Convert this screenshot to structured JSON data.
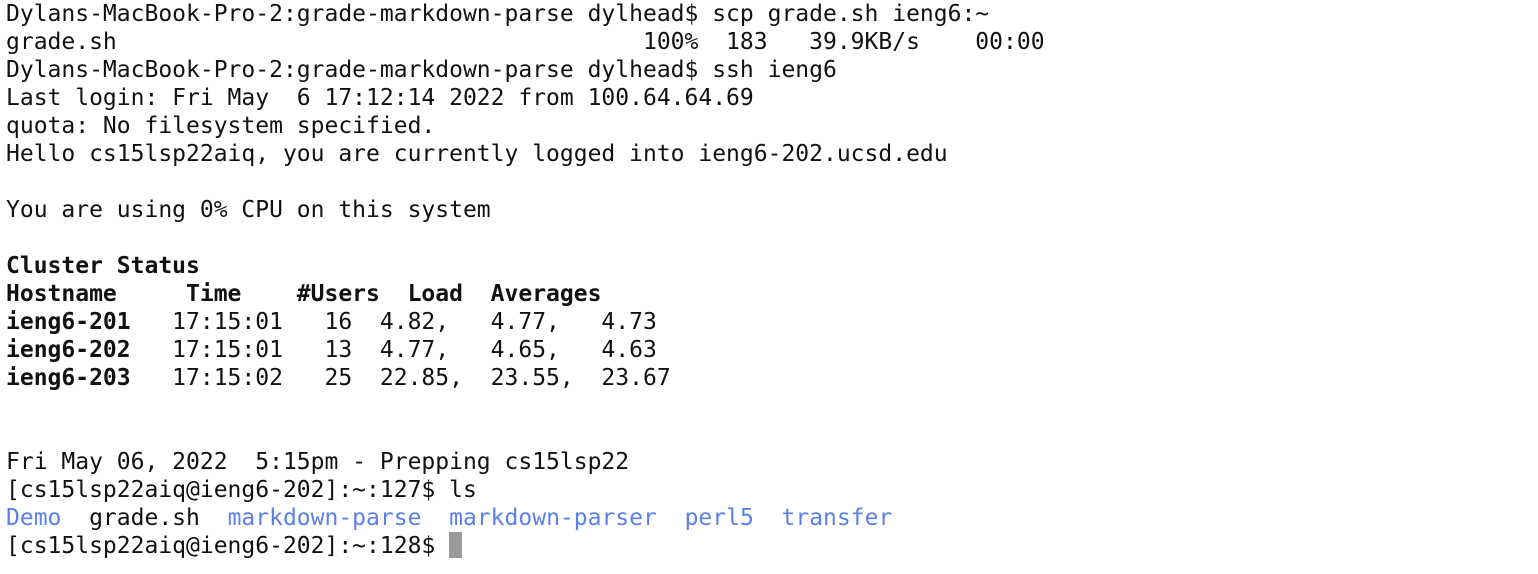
{
  "terminal": {
    "blocks": [
      {
        "lines": [
          [
            {
              "text": "Dylans-MacBook-Pro-2:grade-markdown-parse dylhead$ scp grade.sh ieng6:~"
            }
          ],
          [
            {
              "text": "grade.sh                                      100%  183   39.9KB/s    00:00"
            }
          ],
          [
            {
              "text": "Dylans-MacBook-Pro-2:grade-markdown-parse dylhead$ ssh ieng6"
            }
          ],
          [
            {
              "text": "Last login: Fri May  6 17:12:14 2022 from 100.64.64.69"
            }
          ],
          [
            {
              "text": "quota: No filesystem specified."
            }
          ],
          [
            {
              "text": "Hello cs15lsp22aiq, you are currently logged into ieng6-202.ucsd.edu"
            }
          ]
        ]
      },
      {
        "lines": [
          [
            {
              "text": "You are using 0% CPU on this system"
            }
          ]
        ]
      },
      {
        "lines": [
          [
            {
              "text": "Cluster Status",
              "bold": true
            }
          ],
          [
            {
              "text": "Hostname     Time    #Users  Load  Averages",
              "bold": true
            }
          ],
          [
            {
              "text": "ieng6-201",
              "bold": true
            },
            {
              "text": "   17:15:01   16  4.82,   4.77,   4.73"
            }
          ],
          [
            {
              "text": "ieng6-202",
              "bold": true
            },
            {
              "text": "   17:15:01   13  4.77,   4.65,   4.63"
            }
          ],
          [
            {
              "text": "ieng6-203",
              "bold": true
            },
            {
              "text": "   17:15:02   25  22.85,  23.55,  23.67"
            }
          ]
        ]
      },
      {
        "lines": [
          [
            {
              "text": "Fri May 06, 2022  5:15pm - Prepping cs15lsp22"
            }
          ],
          [
            {
              "text": "[cs15lsp22aiq@ieng6-202]:~:127$ ls"
            }
          ],
          [
            {
              "text": "Demo",
              "color": "#5b80e6"
            },
            {
              "text": "  grade.sh  "
            },
            {
              "text": "markdown-parse",
              "color": "#5b80e6"
            },
            {
              "text": "  "
            },
            {
              "text": "markdown-parser",
              "color": "#5b80e6"
            },
            {
              "text": "  "
            },
            {
              "text": "perl5",
              "color": "#5b80e6"
            },
            {
              "text": "  "
            },
            {
              "text": "transfer",
              "color": "#5b80e6"
            }
          ],
          [
            {
              "text": "[cs15lsp22aiq@ieng6-202]:~:128$ "
            }
          ]
        ]
      }
    ]
  }
}
